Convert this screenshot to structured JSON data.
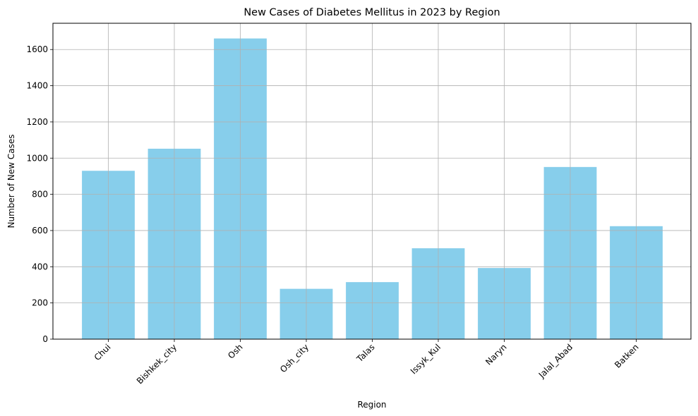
{
  "chart_data": {
    "type": "bar",
    "title": "New Cases of Diabetes Mellitus in 2023 by Region",
    "xlabel": "Region",
    "ylabel": "Number of New Cases",
    "categories": [
      "Chui",
      "Bishkek_city",
      "Osh",
      "Osh_city",
      "Talas",
      "Issyk_Kul",
      "Naryn",
      "Jalal_Abad",
      "Batken"
    ],
    "values": [
      930,
      1052,
      1661,
      278,
      315,
      502,
      393,
      951,
      624
    ],
    "ylim": [
      0,
      1745
    ],
    "yticks": [
      0,
      200,
      400,
      600,
      800,
      1000,
      1200,
      1400,
      1600
    ],
    "grid": true,
    "legend": "none",
    "bar_color": "#87ceeb",
    "grid_color": "#b0b0b0"
  }
}
